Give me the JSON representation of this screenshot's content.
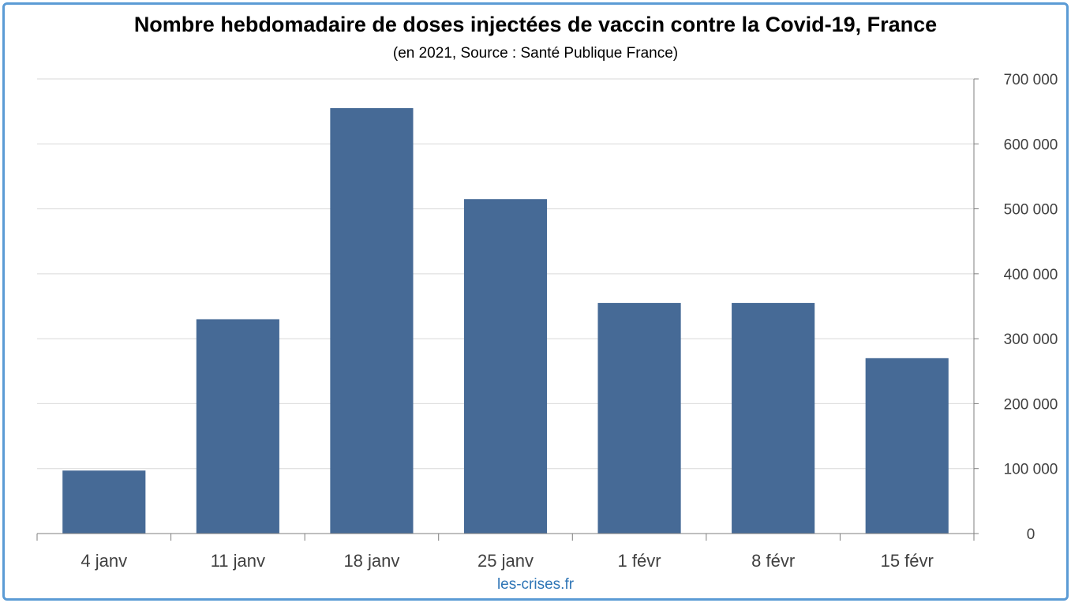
{
  "title": "Nombre hebdomadaire de doses injectées de vaccin contre la Covid-19, France",
  "subtitle": "(en 2021, Source : Santé Publique France)",
  "source_label": "les-crises.fr",
  "colors": {
    "bar": "#466a96",
    "grid": "#d9d9d9",
    "axis": "#7f7f7f",
    "border": "#5b9bd5",
    "source_text": "#2e75b6"
  },
  "chart_data": {
    "type": "bar",
    "title": "Nombre hebdomadaire de doses injectées de vaccin contre la Covid-19, France",
    "subtitle": "(en 2021, Source : Santé Publique France)",
    "categories": [
      "4 janv",
      "11 janv",
      "18 janv",
      "25 janv",
      "1 févr",
      "8 févr",
      "15 févr"
    ],
    "values": [
      97000,
      330000,
      655000,
      515000,
      355000,
      355000,
      270000
    ],
    "ylim": [
      0,
      700000
    ],
    "yticks": [
      0,
      100000,
      200000,
      300000,
      400000,
      500000,
      600000,
      700000
    ],
    "ytick_labels": [
      "0",
      "100 000",
      "200 000",
      "300 000",
      "400 000",
      "500 000",
      "600 000",
      "700 000"
    ],
    "y_axis_side": "right",
    "grid": true,
    "legend": "none"
  }
}
